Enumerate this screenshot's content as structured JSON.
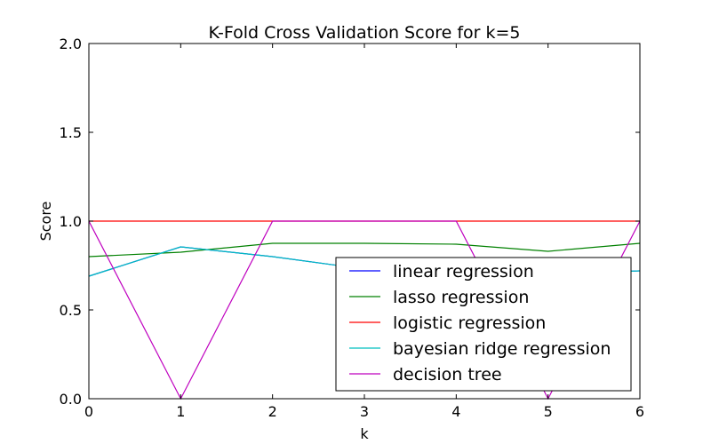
{
  "chart_data": {
    "type": "line",
    "title": "K-Fold Cross Validation Score for k=5",
    "xlabel": "k",
    "ylabel": "Score",
    "xlim": [
      0,
      6
    ],
    "ylim": [
      0,
      2.0
    ],
    "x_ticks": [
      "0",
      "1",
      "2",
      "3",
      "4",
      "5",
      "6"
    ],
    "y_ticks": [
      "0.0",
      "0.5",
      "1.0",
      "1.5",
      "2.0"
    ],
    "grid": false,
    "legend_position": "lower-right",
    "x": [
      0,
      1,
      2,
      3,
      4,
      5,
      6
    ],
    "series": [
      {
        "name": "linear regression",
        "color": "#0000ff",
        "values": [
          0.69,
          0.855,
          0.8,
          0.73,
          0.68,
          0.7,
          0.72
        ]
      },
      {
        "name": "lasso regression",
        "color": "#008000",
        "values": [
          0.8,
          0.825,
          0.875,
          0.875,
          0.87,
          0.83,
          0.875
        ]
      },
      {
        "name": "logistic regression",
        "color": "#ff0000",
        "values": [
          1.0,
          1.0,
          1.0,
          1.0,
          1.0,
          1.0,
          1.0
        ]
      },
      {
        "name": "bayesian ridge regression",
        "color": "#00bfbf",
        "values": [
          0.69,
          0.855,
          0.8,
          0.73,
          0.68,
          0.7,
          0.72
        ]
      },
      {
        "name": "decision tree",
        "color": "#bf00bf",
        "values": [
          1.0,
          0.0,
          1.0,
          1.0,
          1.0,
          0.0,
          1.0
        ]
      }
    ]
  }
}
